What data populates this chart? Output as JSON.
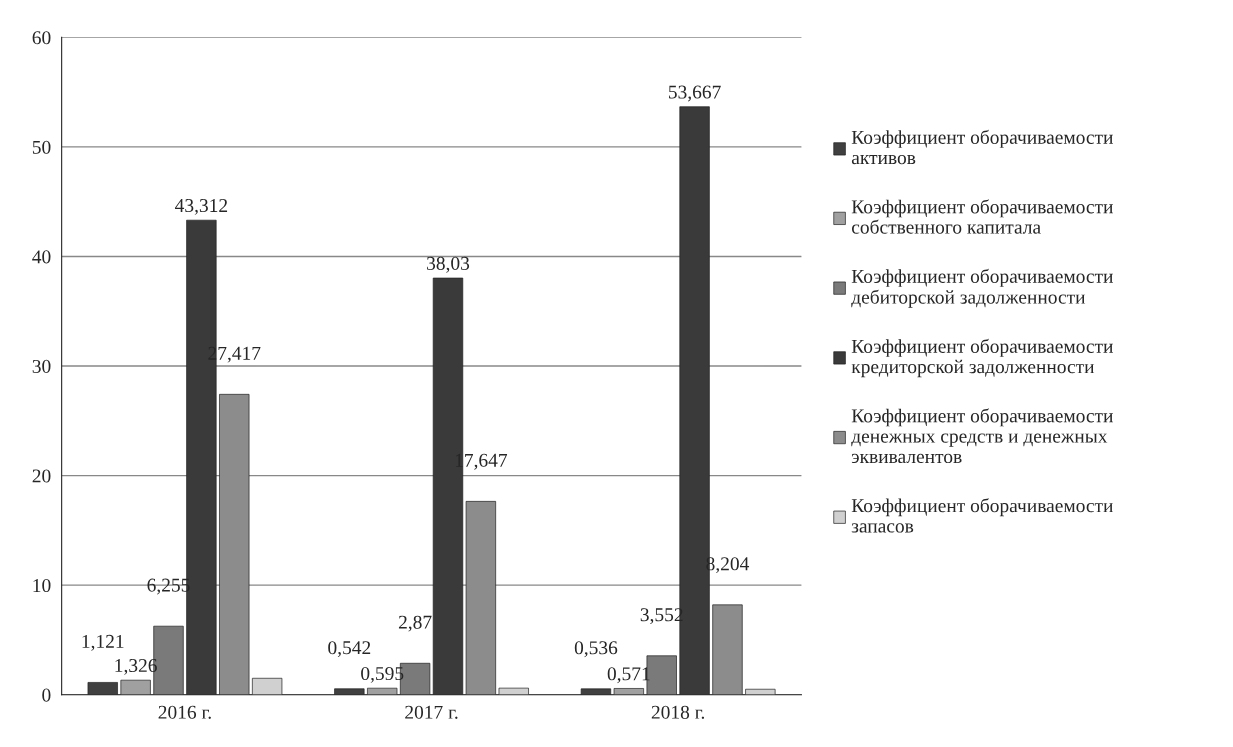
{
  "chart_data": {
    "type": "bar",
    "categories": [
      "2016 г.",
      "2017 г.",
      "2018 г."
    ],
    "series": [
      {
        "name": "Коэффициент оборачиваемости\nактивов",
        "color": "#404040",
        "values": [
          1.121,
          0.542,
          0.536
        ],
        "value_labels": [
          "1,121",
          "0,542",
          "0,536"
        ]
      },
      {
        "name": "Коэффициент оборачиваемости\nсобственного капитала",
        "color": "#a0a0a0",
        "values": [
          1.326,
          0.595,
          0.571
        ],
        "value_labels": [
          "1,326",
          "0,595",
          "0,571"
        ]
      },
      {
        "name": "Коэффициент оборачиваемости\nдебиторской задолженности",
        "color": "#7a7a7a",
        "values": [
          6.255,
          2.87,
          3.552
        ],
        "value_labels": [
          "6,255",
          "2,87",
          "3,552"
        ]
      },
      {
        "name": "Коэффициент оборачиваемости\nкредиторской задолженности",
        "color": "#3a3a3a",
        "values": [
          43.312,
          38.03,
          53.667
        ],
        "value_labels": [
          "43,312",
          "38,03",
          "53,667"
        ]
      },
      {
        "name": "Коэффициент оборачиваемости\nденежных средств и денежных\nэквивалентов",
        "color": "#8c8c8c",
        "values": [
          27.417,
          17.647,
          8.204
        ],
        "value_labels": [
          "27,417",
          "17,647",
          "8,204"
        ]
      },
      {
        "name": "Коэффициент оборачиваемости\nзапасов",
        "color": "#d0d0d0",
        "values": [
          1.5,
          0.6,
          0.5
        ],
        "value_labels": [
          null,
          null,
          null
        ]
      }
    ],
    "ylim": [
      0,
      60
    ],
    "yticks": [
      0,
      10,
      20,
      30,
      40,
      50,
      60
    ],
    "grid": "y",
    "legend": "right"
  }
}
